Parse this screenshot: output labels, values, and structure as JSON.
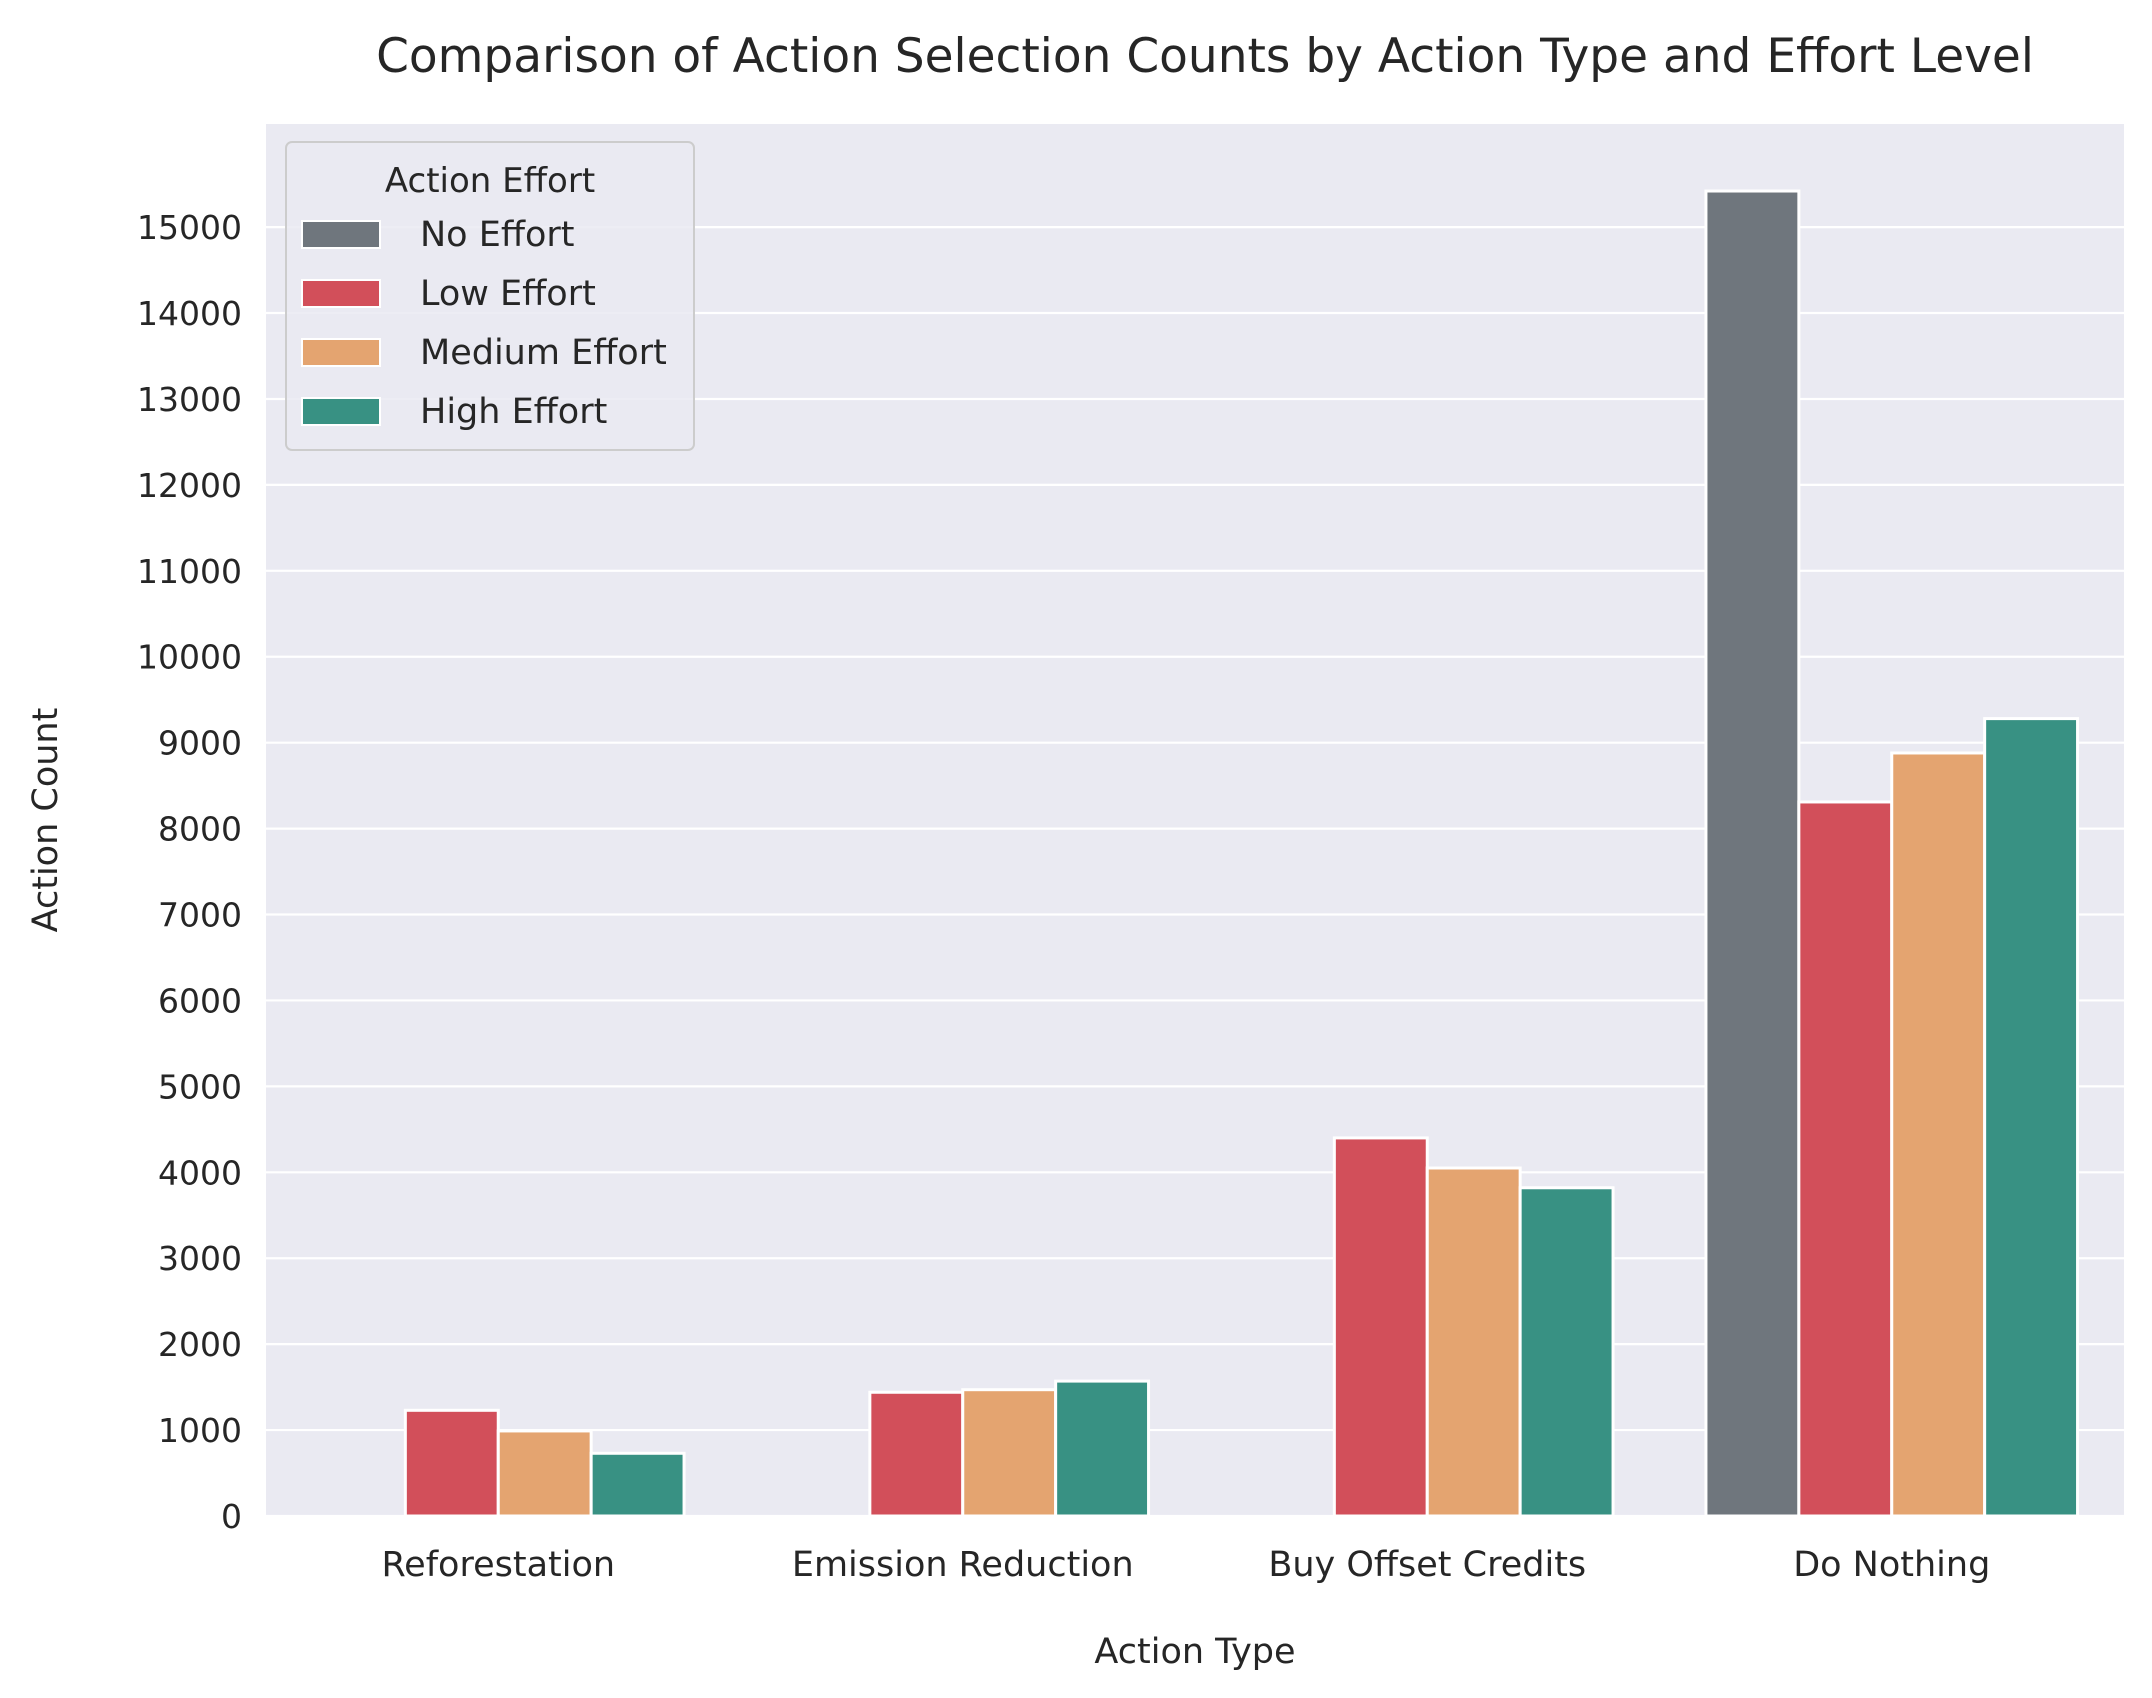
{
  "chart_data": {
    "type": "bar",
    "title": "Comparison of Action Selection Counts by Action Type and Effort Level",
    "xlabel": "Action Type",
    "ylabel": "Action Count",
    "ylim": [
      0,
      16200
    ],
    "yticks": [
      0,
      1000,
      2000,
      3000,
      4000,
      5000,
      6000,
      7000,
      8000,
      9000,
      10000,
      11000,
      12000,
      13000,
      14000,
      15000
    ],
    "grid": true,
    "categories": [
      "Reforestation",
      "Emission Reduction",
      "Buy Offset Credits",
      "Do Nothing"
    ],
    "legend": {
      "title": "Action Effort",
      "placement": "top-left"
    },
    "series": [
      {
        "name": "No Effort",
        "color": "#6f767d",
        "values": [
          0,
          0,
          0,
          15420
        ]
      },
      {
        "name": "Low Effort",
        "color": "#d24f5a",
        "values": [
          1230,
          1440,
          4400,
          8310
        ]
      },
      {
        "name": "Medium Effort",
        "color": "#e4a470",
        "values": [
          990,
          1470,
          4050,
          8880
        ]
      },
      {
        "name": "High Effort",
        "color": "#389183",
        "values": [
          730,
          1570,
          3820,
          9280
        ]
      }
    ],
    "colors": {
      "plot_background": "#eaeaf2",
      "grid": "#ffffff",
      "text": "#262626"
    }
  }
}
